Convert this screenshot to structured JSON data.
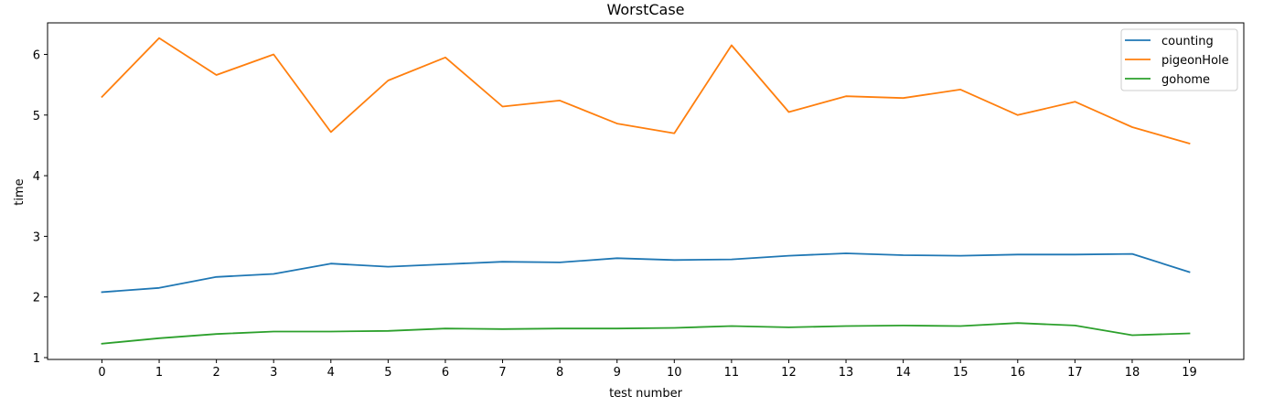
{
  "chart_data": {
    "type": "line",
    "title": "WorstCase",
    "xlabel": "test number",
    "ylabel": "time",
    "x": [
      0,
      1,
      2,
      3,
      4,
      5,
      6,
      7,
      8,
      9,
      10,
      11,
      12,
      13,
      14,
      15,
      16,
      17,
      18,
      19
    ],
    "xticks": [
      "0",
      "1",
      "2",
      "3",
      "4",
      "5",
      "6",
      "7",
      "8",
      "9",
      "10",
      "11",
      "12",
      "13",
      "14",
      "15",
      "16",
      "17",
      "18",
      "19"
    ],
    "yticks": [
      "1",
      "2",
      "3",
      "4",
      "5",
      "6"
    ],
    "xlim": [
      -0.95,
      19.95
    ],
    "ylim": [
      0.97,
      6.52
    ],
    "grid": false,
    "legend_position": "top-right",
    "series": [
      {
        "name": "counting",
        "color": "#1f77b4",
        "values": [
          2.08,
          2.15,
          2.33,
          2.38,
          2.55,
          2.5,
          2.54,
          2.58,
          2.57,
          2.64,
          2.61,
          2.62,
          2.68,
          2.72,
          2.69,
          2.68,
          2.7,
          2.7,
          2.71,
          2.41
        ]
      },
      {
        "name": "pigeonHole",
        "color": "#ff7f0e",
        "values": [
          5.3,
          6.27,
          5.66,
          6.0,
          4.72,
          5.57,
          5.95,
          5.14,
          5.24,
          4.86,
          4.7,
          6.15,
          5.05,
          5.31,
          5.28,
          5.42,
          5.0,
          5.22,
          4.8,
          4.53
        ]
      },
      {
        "name": "gohome",
        "color": "#2ca02c",
        "values": [
          1.23,
          1.32,
          1.39,
          1.43,
          1.43,
          1.44,
          1.48,
          1.47,
          1.48,
          1.48,
          1.49,
          1.52,
          1.5,
          1.52,
          1.53,
          1.52,
          1.57,
          1.53,
          1.37,
          1.4
        ]
      }
    ]
  }
}
